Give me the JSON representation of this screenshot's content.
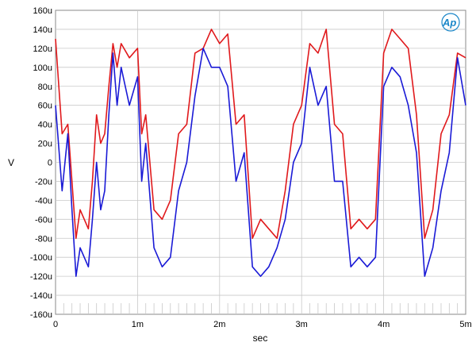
{
  "chart_data": {
    "type": "line",
    "title": "",
    "xlabel": "sec",
    "ylabel": "V",
    "xlim": [
      0,
      0.005
    ],
    "ylim": [
      -0.00016,
      0.00016
    ],
    "grid": true,
    "x_ticks": [
      {
        "value": 0,
        "label": "0"
      },
      {
        "value": 0.001,
        "label": "1m"
      },
      {
        "value": 0.002,
        "label": "2m"
      },
      {
        "value": 0.003,
        "label": "3m"
      },
      {
        "value": 0.004,
        "label": "4m"
      },
      {
        "value": 0.005,
        "label": "5m"
      }
    ],
    "y_ticks": [
      {
        "value": 0.00016,
        "label": "160u"
      },
      {
        "value": 0.00014,
        "label": "140u"
      },
      {
        "value": 0.00012,
        "label": "120u"
      },
      {
        "value": 0.0001,
        "label": "100u"
      },
      {
        "value": 8e-05,
        "label": "80u"
      },
      {
        "value": 6e-05,
        "label": "60u"
      },
      {
        "value": 4e-05,
        "label": "40u"
      },
      {
        "value": 2e-05,
        "label": "20u"
      },
      {
        "value": 0,
        "label": "0"
      },
      {
        "value": -2e-05,
        "label": "-20u"
      },
      {
        "value": -4e-05,
        "label": "-40u"
      },
      {
        "value": -6e-05,
        "label": "-60u"
      },
      {
        "value": -8e-05,
        "label": "-80u"
      },
      {
        "value": -0.0001,
        "label": "-100u"
      },
      {
        "value": -0.00012,
        "label": "-120u"
      },
      {
        "value": -0.00014,
        "label": "-140u"
      },
      {
        "value": -0.00016,
        "label": "-160u"
      }
    ],
    "series": [
      {
        "color": "#e0191c",
        "x": [
          0,
          8e-05,
          0.00015,
          0.0002,
          0.00025,
          0.0003,
          0.0004,
          0.00045,
          0.0005,
          0.00055,
          0.0006,
          0.00065,
          0.0007,
          0.00075,
          0.0008,
          0.0009,
          0.001,
          0.00105,
          0.0011,
          0.0012,
          0.0013,
          0.0014,
          0.0015,
          0.0016,
          0.0017,
          0.0018,
          0.0019,
          0.002,
          0.0021,
          0.0022,
          0.0023,
          0.0024,
          0.0025,
          0.0026,
          0.0027,
          0.0028,
          0.0029,
          0.003,
          0.0031,
          0.0032,
          0.0033,
          0.0034,
          0.0035,
          0.0036,
          0.0037,
          0.0038,
          0.0039,
          0.004,
          0.0041,
          0.0042,
          0.0043,
          0.0044,
          0.0045,
          0.0046,
          0.0047,
          0.0048,
          0.0049,
          0.005
        ],
        "y": [
          0.00013,
          3e-05,
          4e-05,
          -2e-05,
          -8e-05,
          -5e-05,
          -7e-05,
          -2e-05,
          5e-05,
          2e-05,
          3e-05,
          8e-05,
          0.000125,
          0.0001,
          0.000125,
          0.00011,
          0.00012,
          3e-05,
          5e-05,
          -5e-05,
          -6e-05,
          -4e-05,
          3e-05,
          4e-05,
          0.000115,
          0.00012,
          0.00014,
          0.000125,
          0.000135,
          4e-05,
          5e-05,
          -8e-05,
          -6e-05,
          -7e-05,
          -8e-05,
          -3e-05,
          4e-05,
          6e-05,
          0.000125,
          0.000115,
          0.00014,
          4e-05,
          3e-05,
          -7e-05,
          -6e-05,
          -7e-05,
          -6e-05,
          0.000115,
          0.00014,
          0.00013,
          0.00012,
          5e-05,
          -8e-05,
          -5e-05,
          3e-05,
          5e-05,
          0.000115,
          0.00011
        ]
      },
      {
        "color": "#1a1ad6",
        "x": [
          0,
          8e-05,
          0.00015,
          0.0002,
          0.00025,
          0.0003,
          0.0004,
          0.00045,
          0.0005,
          0.00055,
          0.0006,
          0.00065,
          0.0007,
          0.00075,
          0.0008,
          0.0009,
          0.001,
          0.00105,
          0.0011,
          0.0012,
          0.0013,
          0.0014,
          0.0015,
          0.0016,
          0.0017,
          0.0018,
          0.0019,
          0.002,
          0.0021,
          0.0022,
          0.0023,
          0.0024,
          0.0025,
          0.0026,
          0.0027,
          0.0028,
          0.0029,
          0.003,
          0.0031,
          0.0032,
          0.0033,
          0.0034,
          0.0035,
          0.0036,
          0.0037,
          0.0038,
          0.0039,
          0.004,
          0.0041,
          0.0042,
          0.0043,
          0.0044,
          0.0045,
          0.0046,
          0.0047,
          0.0048,
          0.0049,
          0.005
        ],
        "y": [
          6e-05,
          -3e-05,
          3e-05,
          -5e-05,
          -0.00012,
          -9e-05,
          -0.00011,
          -6e-05,
          0,
          -5e-05,
          -3e-05,
          5e-05,
          0.000115,
          6e-05,
          0.0001,
          6e-05,
          9e-05,
          -2e-05,
          2e-05,
          -9e-05,
          -0.00011,
          -0.0001,
          -3e-05,
          0,
          7e-05,
          0.00012,
          0.0001,
          0.0001,
          8e-05,
          -2e-05,
          1e-05,
          -0.00011,
          -0.00012,
          -0.00011,
          -9e-05,
          -6e-05,
          0,
          2e-05,
          0.0001,
          6e-05,
          8e-05,
          -2e-05,
          -2e-05,
          -0.00011,
          -0.0001,
          -0.00011,
          -0.0001,
          8e-05,
          0.0001,
          9e-05,
          6e-05,
          1e-05,
          -0.00012,
          -9e-05,
          -3e-05,
          1e-05,
          0.00011,
          6e-05
        ]
      }
    ]
  },
  "logo": {
    "text": "Ap"
  }
}
